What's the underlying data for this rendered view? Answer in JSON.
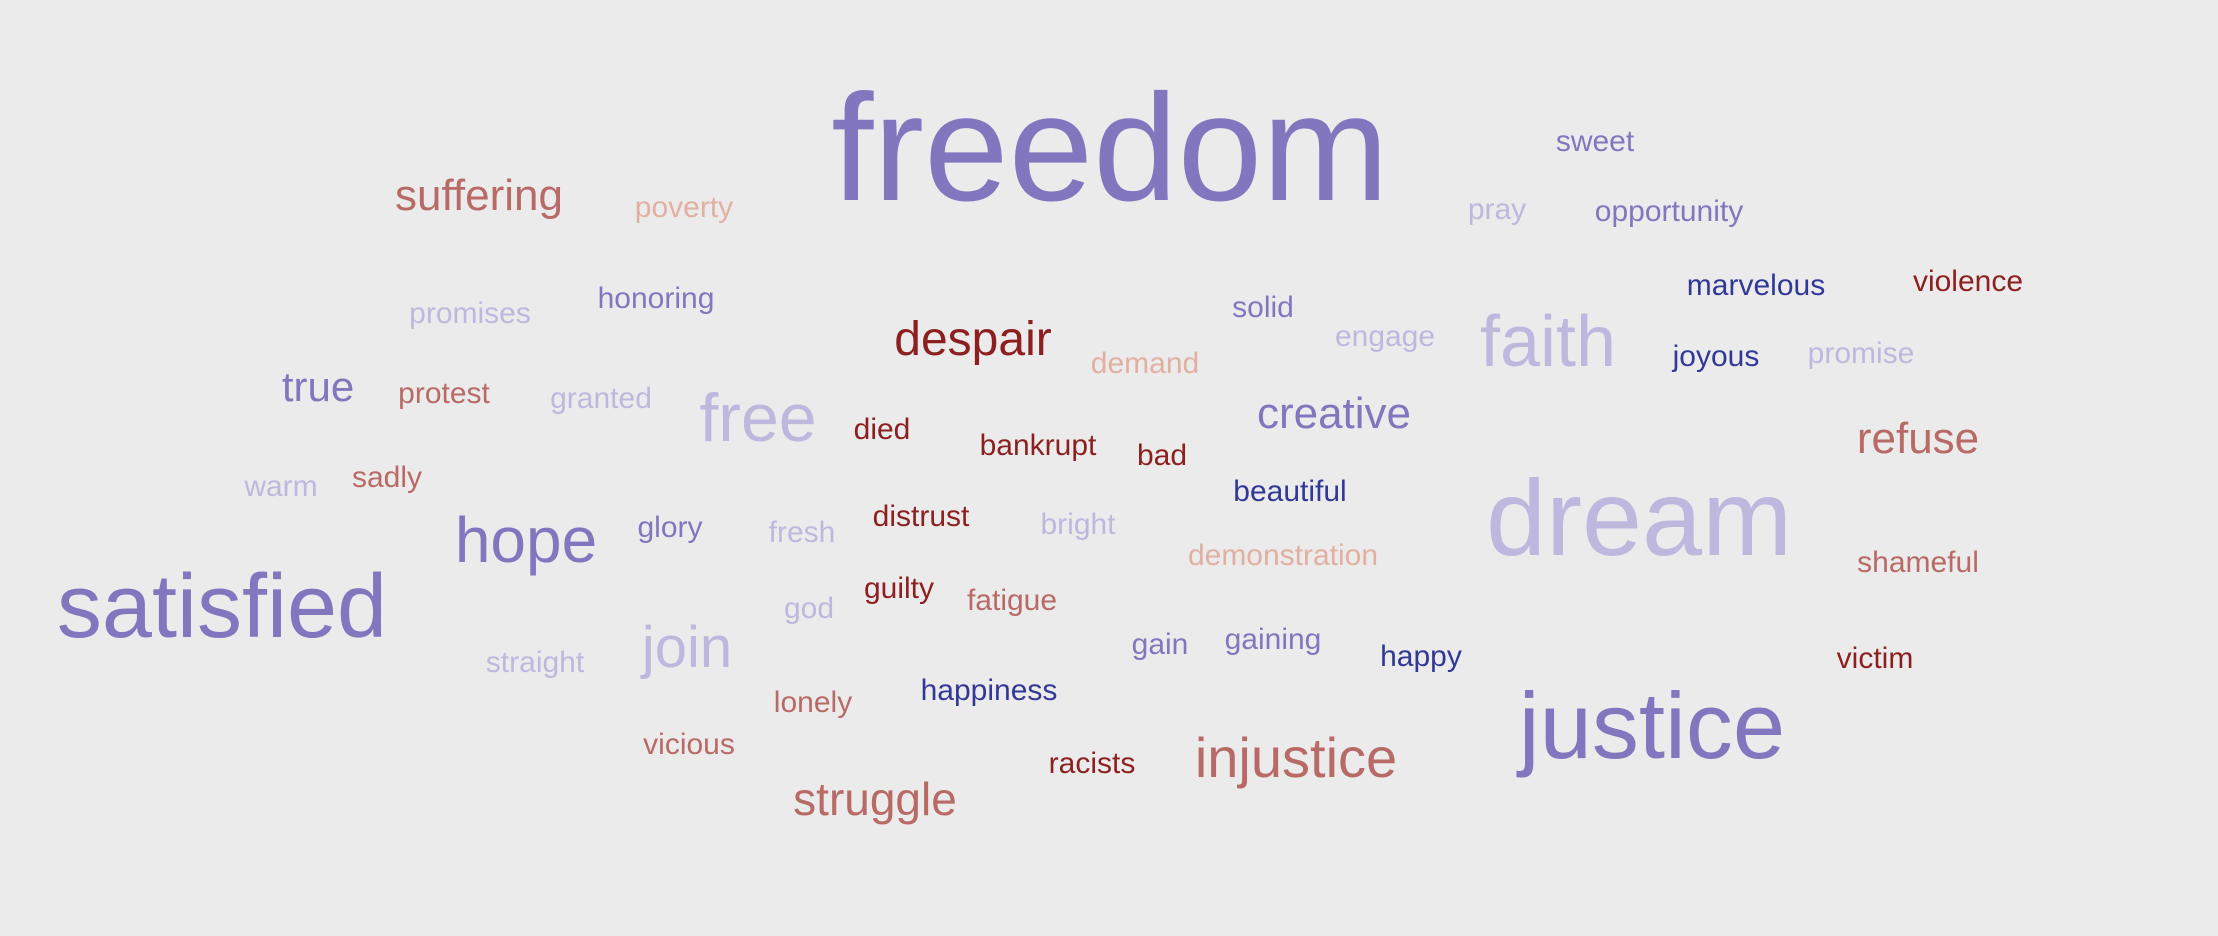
{
  "palette": {
    "background": "#ebebeb",
    "purple": "#8277bf",
    "lavender": "#bfb8de",
    "navy": "#323896",
    "rose": "#b86a66",
    "peach": "#e2b0a3",
    "maroon": "#8c1f1f"
  },
  "words": [
    {
      "text": "freedom",
      "tone": "purple",
      "weight": 1.0
    },
    {
      "text": "sweet",
      "tone": "purple",
      "weight": 0.12
    },
    {
      "text": "suffering",
      "tone": "rose",
      "weight": 0.22
    },
    {
      "text": "poverty",
      "tone": "peach",
      "weight": 0.12
    },
    {
      "text": "pray",
      "tone": "lavender",
      "weight": 0.12
    },
    {
      "text": "opportunity",
      "tone": "purple",
      "weight": 0.12
    },
    {
      "text": "marvelous",
      "tone": "navy",
      "weight": 0.12
    },
    {
      "text": "violence",
      "tone": "maroon",
      "weight": 0.12
    },
    {
      "text": "promises",
      "tone": "lavender",
      "weight": 0.12
    },
    {
      "text": "honoring",
      "tone": "purple",
      "weight": 0.12
    },
    {
      "text": "solid",
      "tone": "purple",
      "weight": 0.12
    },
    {
      "text": "despair",
      "tone": "maroon",
      "weight": 0.25
    },
    {
      "text": "engage",
      "tone": "lavender",
      "weight": 0.12
    },
    {
      "text": "faith",
      "tone": "lavender",
      "weight": 0.45
    },
    {
      "text": "joyous",
      "tone": "navy",
      "weight": 0.12
    },
    {
      "text": "promise",
      "tone": "lavender",
      "weight": 0.12
    },
    {
      "text": "demand",
      "tone": "peach",
      "weight": 0.12
    },
    {
      "text": "true",
      "tone": "purple",
      "weight": 0.2
    },
    {
      "text": "protest",
      "tone": "rose",
      "weight": 0.12
    },
    {
      "text": "granted",
      "tone": "lavender",
      "weight": 0.12
    },
    {
      "text": "free",
      "tone": "lavender",
      "weight": 0.42
    },
    {
      "text": "died",
      "tone": "maroon",
      "weight": 0.12
    },
    {
      "text": "bankrupt",
      "tone": "maroon",
      "weight": 0.12
    },
    {
      "text": "bad",
      "tone": "maroon",
      "weight": 0.12
    },
    {
      "text": "creative",
      "tone": "purple",
      "weight": 0.22
    },
    {
      "text": "refuse",
      "tone": "rose",
      "weight": 0.22
    },
    {
      "text": "warm",
      "tone": "lavender",
      "weight": 0.12
    },
    {
      "text": "sadly",
      "tone": "rose",
      "weight": 0.12
    },
    {
      "text": "beautiful",
      "tone": "navy",
      "weight": 0.12
    },
    {
      "text": "dream",
      "tone": "lavender",
      "weight": 0.78
    },
    {
      "text": "hope",
      "tone": "purple",
      "weight": 0.4
    },
    {
      "text": "glory",
      "tone": "purple",
      "weight": 0.12
    },
    {
      "text": "fresh",
      "tone": "lavender",
      "weight": 0.12
    },
    {
      "text": "distrust",
      "tone": "maroon",
      "weight": 0.12
    },
    {
      "text": "bright",
      "tone": "lavender",
      "weight": 0.12
    },
    {
      "text": "demonstration",
      "tone": "peach",
      "weight": 0.12
    },
    {
      "text": "shameful",
      "tone": "rose",
      "weight": 0.12
    },
    {
      "text": "satisfied",
      "tone": "purple",
      "weight": 0.72
    },
    {
      "text": "god",
      "tone": "lavender",
      "weight": 0.12
    },
    {
      "text": "guilty",
      "tone": "maroon",
      "weight": 0.12
    },
    {
      "text": "fatigue",
      "tone": "rose",
      "weight": 0.12
    },
    {
      "text": "join",
      "tone": "lavender",
      "weight": 0.4
    },
    {
      "text": "gain",
      "tone": "purple",
      "weight": 0.12
    },
    {
      "text": "gaining",
      "tone": "purple",
      "weight": 0.12
    },
    {
      "text": "happy",
      "tone": "navy",
      "weight": 0.12
    },
    {
      "text": "victim",
      "tone": "maroon",
      "weight": 0.12
    },
    {
      "text": "straight",
      "tone": "lavender",
      "weight": 0.12
    },
    {
      "text": "lonely",
      "tone": "rose",
      "weight": 0.12
    },
    {
      "text": "happiness",
      "tone": "navy",
      "weight": 0.12
    },
    {
      "text": "justice",
      "tone": "purple",
      "weight": 0.75
    },
    {
      "text": "vicious",
      "tone": "rose",
      "weight": 0.12
    },
    {
      "text": "racists",
      "tone": "maroon",
      "weight": 0.12
    },
    {
      "text": "injustice",
      "tone": "rose",
      "weight": 0.4
    },
    {
      "text": "struggle",
      "tone": "rose",
      "weight": 0.3
    }
  ]
}
